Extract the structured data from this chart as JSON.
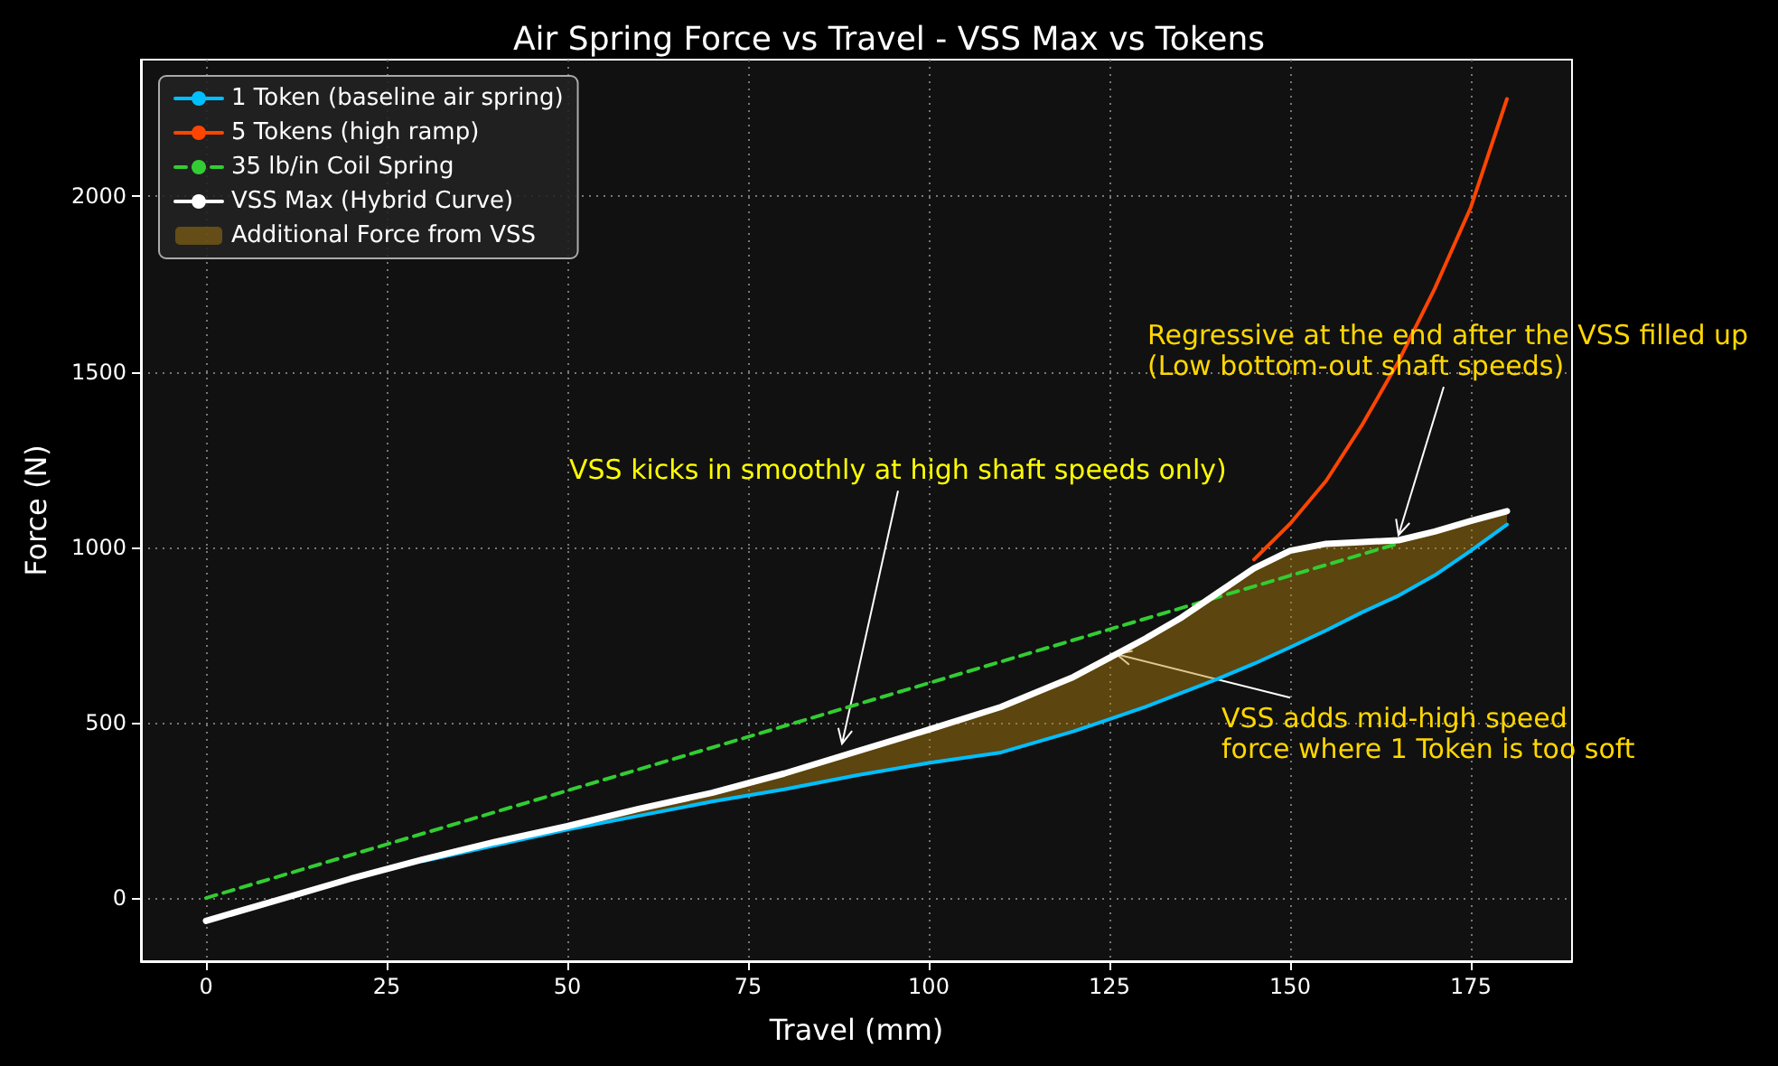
{
  "chart_data": {
    "type": "line",
    "title": "Air Spring Force vs Travel - VSS Max vs Tokens",
    "xlabel": "Travel (mm)",
    "ylabel": "Force (N)",
    "xlim": [
      -9,
      189
    ],
    "xticks": [
      0,
      25,
      50,
      75,
      100,
      125,
      150,
      175
    ],
    "ylim": [
      -180,
      2390
    ],
    "yticks": [
      0,
      500,
      1000,
      1500,
      2000
    ],
    "grid": true,
    "legend": "top left",
    "series": [
      {
        "name": "1 Token (baseline air spring)",
        "color": "#00bfff",
        "x": [
          30,
          40,
          50,
          60,
          70,
          80,
          90,
          100,
          110,
          120,
          125,
          130,
          135,
          140,
          145,
          150,
          155,
          160,
          165,
          170,
          175,
          180
        ],
        "values": [
          105,
          150,
          195,
          235,
          275,
          310,
          350,
          385,
          415,
          475,
          510,
          545,
          585,
          625,
          668,
          715,
          763,
          815,
          862,
          920,
          990,
          1065
        ]
      },
      {
        "name": "5 Tokens (high ramp)",
        "color": "#ff4500",
        "x": [
          145,
          150,
          155,
          160,
          165,
          170,
          175,
          180
        ],
        "values": [
          965,
          1067,
          1190,
          1350,
          1530,
          1737,
          1969,
          2278
        ]
      },
      {
        "name": "35 lb/in Coil Spring",
        "color": "#32cd32",
        "line_style": "dashed",
        "x": [
          0,
          165
        ],
        "values": [
          0,
          1011
        ]
      },
      {
        "name": "VSS Max (Hybrid Curve)",
        "color": "#ffffff",
        "x": [
          0,
          10,
          20,
          30,
          40,
          50,
          60,
          70,
          80,
          90,
          100,
          110,
          120,
          125,
          130,
          135,
          140,
          145,
          150,
          155,
          160,
          165,
          170,
          175,
          180
        ],
        "values": [
          -65,
          -5,
          55,
          110,
          160,
          205,
          255,
          300,
          355,
          418,
          480,
          545,
          630,
          685,
          740,
          800,
          870,
          940,
          990,
          1010,
          1015,
          1020,
          1045,
          1075,
          1103
        ],
        "lower": [
          -65,
          -5,
          55,
          105,
          150,
          195,
          235,
          275,
          310,
          350,
          385,
          415,
          475,
          510,
          545,
          585,
          625,
          668,
          715,
          763,
          815,
          862,
          920,
          990,
          1065
        ],
        "upper": [
          -65,
          -5,
          55,
          110,
          160,
          205,
          255,
          300,
          355,
          418,
          480,
          545,
          630,
          685,
          740,
          800,
          870,
          940,
          990,
          1010,
          1015,
          1020,
          1045,
          1075,
          1103
        ]
      },
      {
        "name": "Additional Force from VSS",
        "type": "area",
        "color": "#b8860b"
      }
    ],
    "annotations": [
      {
        "text": "VSS kicks in smoothly at high shaft speeds only)",
        "x": 88,
        "y": 440
      },
      {
        "text": "Regressive at the end after the VSS filled up\n(Low bottom-out shaft speeds)",
        "x": 165,
        "y": 1035
      },
      {
        "text": "VSS adds mid-high speed\nforce where 1 Token is too soft",
        "x": 126,
        "y": 695
      }
    ]
  }
}
